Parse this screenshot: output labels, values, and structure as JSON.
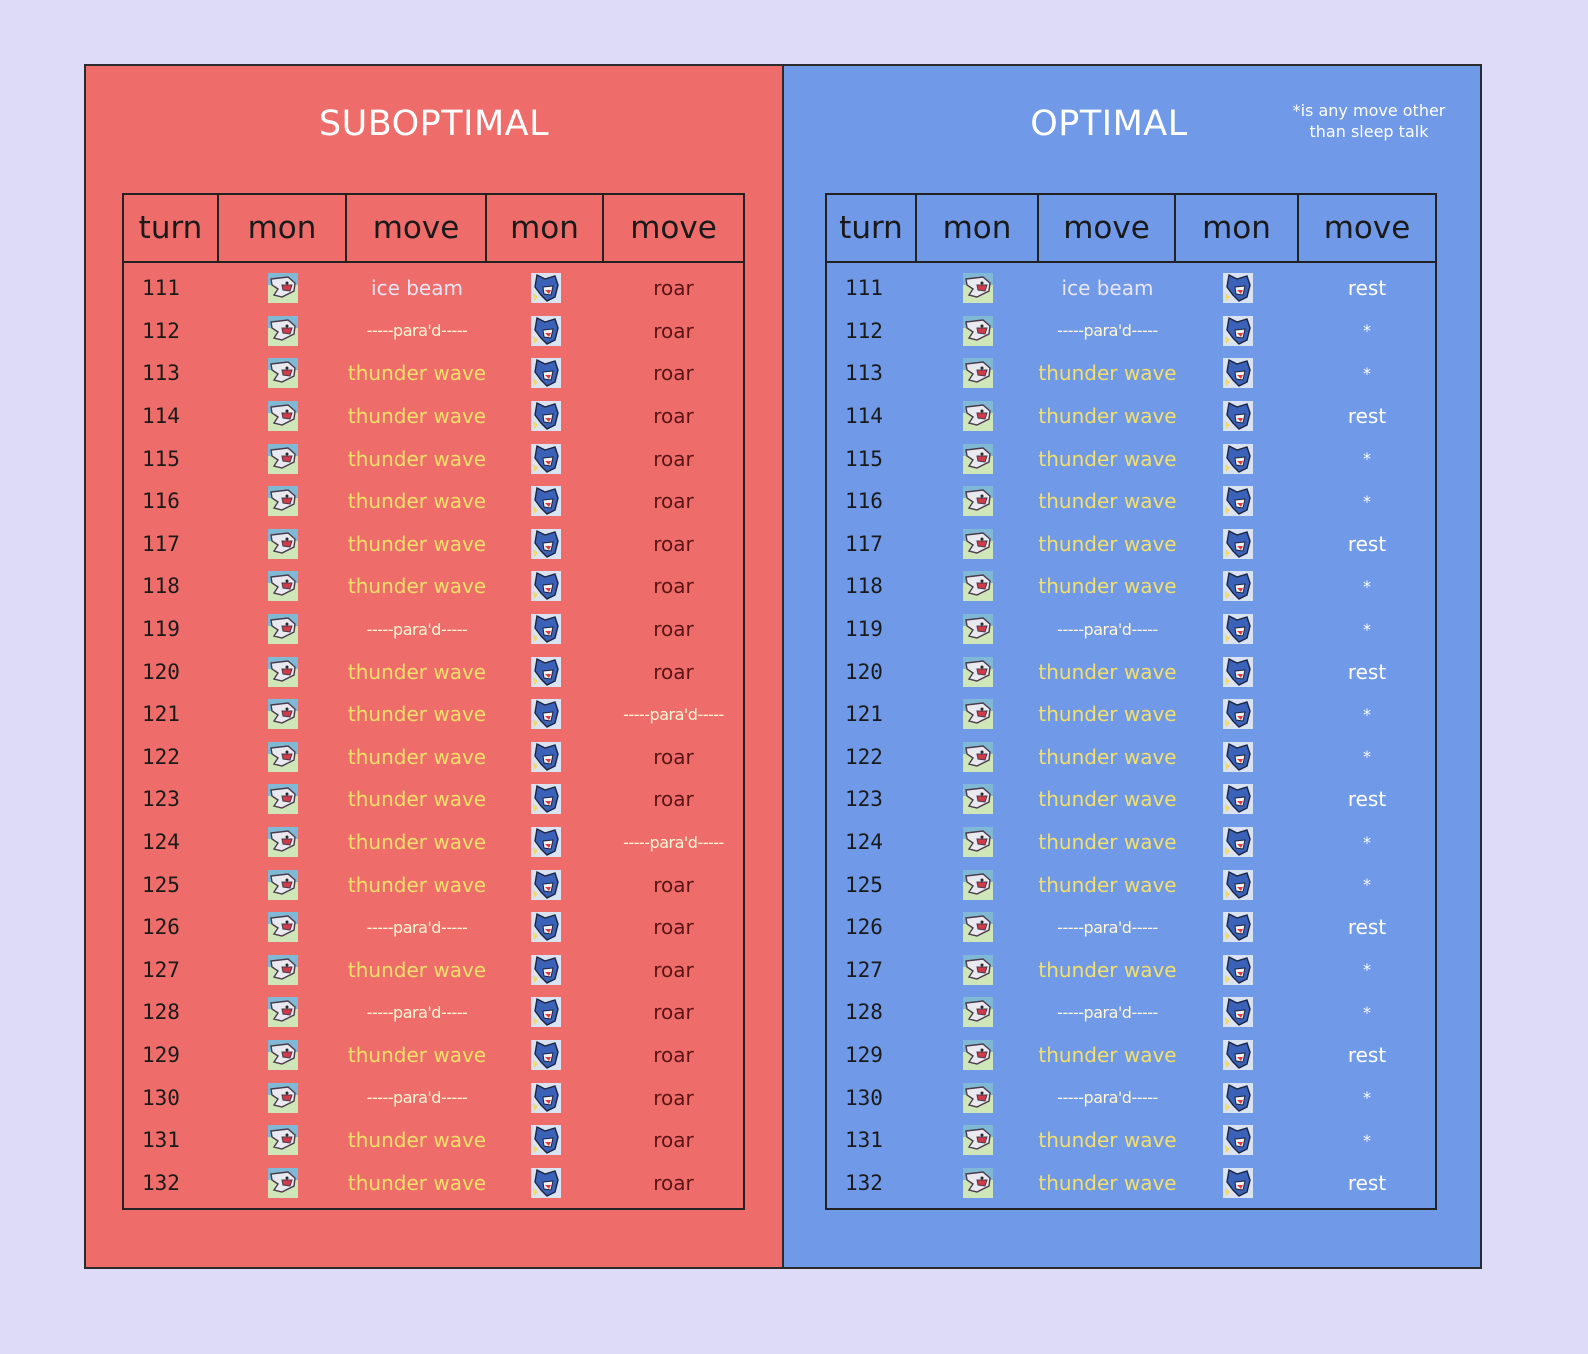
{
  "note": "*is any move other than sleep talk",
  "columns": [
    "turn",
    "mon",
    "move",
    "mon",
    "move"
  ],
  "colors": {
    "background": "#dedbf8",
    "suboptimal_panel": "#ee6d6a",
    "optimal_panel": "#7099e8",
    "thunder_wave": "#f3e06a"
  },
  "icons": {
    "left_mon": "lapras-sprite-icon",
    "right_mon": "gyarados-sprite-icon"
  },
  "suboptimal": {
    "title": "SUBOPTIMAL",
    "rows": [
      {
        "turn": "111",
        "move1": "ice beam",
        "move2": "roar"
      },
      {
        "turn": "112",
        "move1": "-----para'd-----",
        "move2": "roar"
      },
      {
        "turn": "113",
        "move1": "thunder wave",
        "move2": "roar"
      },
      {
        "turn": "114",
        "move1": "thunder wave",
        "move2": "roar"
      },
      {
        "turn": "115",
        "move1": "thunder wave",
        "move2": "roar"
      },
      {
        "turn": "116",
        "move1": "thunder wave",
        "move2": "roar"
      },
      {
        "turn": "117",
        "move1": "thunder wave",
        "move2": "roar"
      },
      {
        "turn": "118",
        "move1": "thunder wave",
        "move2": "roar"
      },
      {
        "turn": "119",
        "move1": "-----para'd-----",
        "move2": "roar"
      },
      {
        "turn": "120",
        "move1": "thunder wave",
        "move2": "roar"
      },
      {
        "turn": "121",
        "move1": "thunder wave",
        "move2": "-----para'd-----"
      },
      {
        "turn": "122",
        "move1": "thunder wave",
        "move2": "roar"
      },
      {
        "turn": "123",
        "move1": "thunder wave",
        "move2": "roar"
      },
      {
        "turn": "124",
        "move1": "thunder wave",
        "move2": "-----para'd-----"
      },
      {
        "turn": "125",
        "move1": "thunder wave",
        "move2": "roar"
      },
      {
        "turn": "126",
        "move1": "-----para'd-----",
        "move2": "roar"
      },
      {
        "turn": "127",
        "move1": "thunder wave",
        "move2": "roar"
      },
      {
        "turn": "128",
        "move1": "-----para'd-----",
        "move2": "roar"
      },
      {
        "turn": "129",
        "move1": "thunder wave",
        "move2": "roar"
      },
      {
        "turn": "130",
        "move1": "-----para'd-----",
        "move2": "roar"
      },
      {
        "turn": "131",
        "move1": "thunder wave",
        "move2": "roar"
      },
      {
        "turn": "132",
        "move1": "thunder wave",
        "move2": "roar"
      }
    ]
  },
  "optimal": {
    "title": "OPTIMAL",
    "rows": [
      {
        "turn": "111",
        "move1": "ice beam",
        "move2": "rest"
      },
      {
        "turn": "112",
        "move1": "-----para'd-----",
        "move2": "*"
      },
      {
        "turn": "113",
        "move1": "thunder wave",
        "move2": "*"
      },
      {
        "turn": "114",
        "move1": "thunder wave",
        "move2": "rest"
      },
      {
        "turn": "115",
        "move1": "thunder wave",
        "move2": "*"
      },
      {
        "turn": "116",
        "move1": "thunder wave",
        "move2": "*"
      },
      {
        "turn": "117",
        "move1": "thunder wave",
        "move2": "rest"
      },
      {
        "turn": "118",
        "move1": "thunder wave",
        "move2": "*"
      },
      {
        "turn": "119",
        "move1": "-----para'd-----",
        "move2": "*"
      },
      {
        "turn": "120",
        "move1": "thunder wave",
        "move2": "rest"
      },
      {
        "turn": "121",
        "move1": "thunder wave",
        "move2": "*"
      },
      {
        "turn": "122",
        "move1": "thunder wave",
        "move2": "*"
      },
      {
        "turn": "123",
        "move1": "thunder wave",
        "move2": "rest"
      },
      {
        "turn": "124",
        "move1": "thunder wave",
        "move2": "*"
      },
      {
        "turn": "125",
        "move1": "thunder wave",
        "move2": "*"
      },
      {
        "turn": "126",
        "move1": "-----para'd-----",
        "move2": "rest"
      },
      {
        "turn": "127",
        "move1": "thunder wave",
        "move2": "*"
      },
      {
        "turn": "128",
        "move1": "-----para'd-----",
        "move2": "*"
      },
      {
        "turn": "129",
        "move1": "thunder wave",
        "move2": "rest"
      },
      {
        "turn": "130",
        "move1": "-----para'd-----",
        "move2": "*"
      },
      {
        "turn": "131",
        "move1": "thunder wave",
        "move2": "*"
      },
      {
        "turn": "132",
        "move1": "thunder wave",
        "move2": "rest"
      }
    ]
  }
}
